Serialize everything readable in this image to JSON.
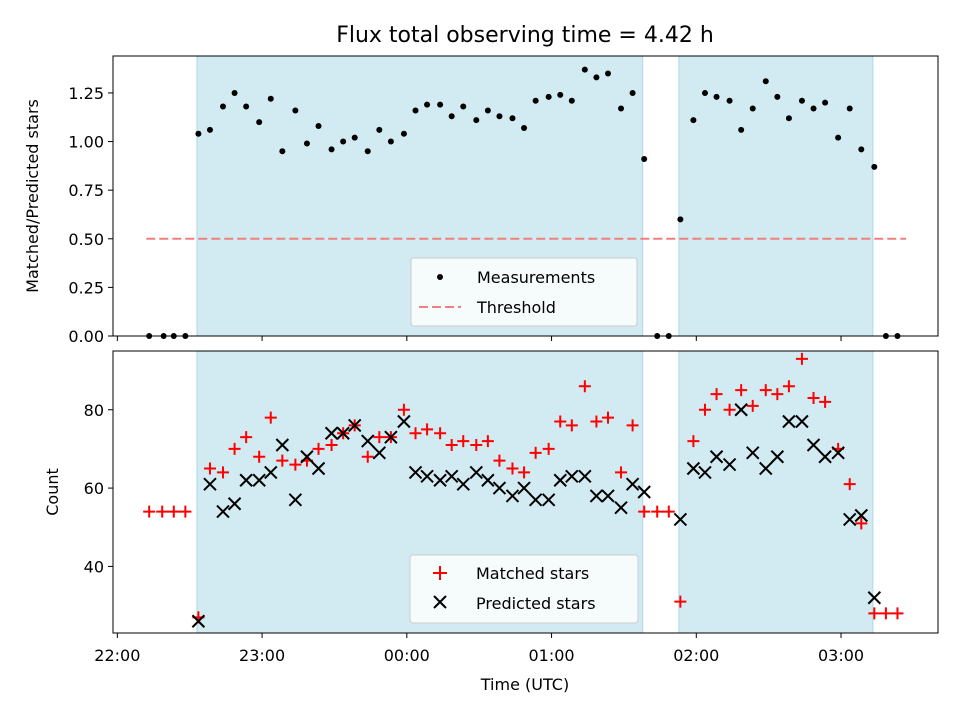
{
  "chart_data": {
    "title": "Flux total observing time = 4.42 h",
    "x_axis": {
      "label": "Time (UTC)",
      "ticks": [
        "22:00",
        "23:00",
        "00:00",
        "01:00",
        "02:00",
        "03:00"
      ],
      "range_hours_after_22": [
        -0.03,
        5.67
      ]
    },
    "shaded_intervals_hours_after_22": [
      [
        0.55,
        3.63
      ],
      [
        3.88,
        5.22
      ]
    ],
    "shade_color": "#add8e6",
    "panels": [
      {
        "type": "scatter",
        "ylabel": "Matched/Predicted stars",
        "ylim": [
          0.0,
          1.44
        ],
        "yticks": [
          "0.00",
          "0.25",
          "0.50",
          "0.75",
          "1.00",
          "1.25"
        ],
        "threshold": {
          "value": 0.5,
          "x_range_hours_after_22": [
            0.2,
            5.45
          ],
          "color": "#f08080"
        },
        "legend": {
          "position": "lower-center",
          "entries": [
            "Measurements",
            "Threshold"
          ]
        },
        "series": [
          {
            "name": "Measurements",
            "marker": "dot",
            "color": "#000000",
            "points": [
              [
                0.22,
                0.0
              ],
              [
                0.32,
                0.0
              ],
              [
                0.39,
                0.0
              ],
              [
                0.47,
                0.0
              ],
              [
                0.56,
                1.04
              ],
              [
                0.64,
                1.06
              ],
              [
                0.73,
                1.18
              ],
              [
                0.81,
                1.25
              ],
              [
                0.89,
                1.18
              ],
              [
                0.98,
                1.1
              ],
              [
                1.06,
                1.22
              ],
              [
                1.14,
                0.95
              ],
              [
                1.23,
                1.16
              ],
              [
                1.31,
                0.99
              ],
              [
                1.39,
                1.08
              ],
              [
                1.48,
                0.96
              ],
              [
                1.56,
                1.0
              ],
              [
                1.64,
                1.02
              ],
              [
                1.73,
                0.95
              ],
              [
                1.81,
                1.06
              ],
              [
                1.89,
                1.0
              ],
              [
                1.98,
                1.04
              ],
              [
                2.06,
                1.16
              ],
              [
                2.14,
                1.19
              ],
              [
                2.23,
                1.19
              ],
              [
                2.31,
                1.13
              ],
              [
                2.39,
                1.18
              ],
              [
                2.48,
                1.11
              ],
              [
                2.56,
                1.16
              ],
              [
                2.64,
                1.13
              ],
              [
                2.73,
                1.12
              ],
              [
                2.81,
                1.07
              ],
              [
                2.89,
                1.21
              ],
              [
                2.98,
                1.23
              ],
              [
                3.06,
                1.24
              ],
              [
                3.14,
                1.21
              ],
              [
                3.23,
                1.37
              ],
              [
                3.31,
                1.33
              ],
              [
                3.39,
                1.35
              ],
              [
                3.48,
                1.17
              ],
              [
                3.56,
                1.25
              ],
              [
                3.64,
                0.91
              ],
              [
                3.73,
                0.0
              ],
              [
                3.81,
                0.0
              ],
              [
                3.89,
                0.6
              ],
              [
                3.98,
                1.11
              ],
              [
                4.06,
                1.25
              ],
              [
                4.14,
                1.23
              ],
              [
                4.23,
                1.21
              ],
              [
                4.31,
                1.06
              ],
              [
                4.39,
                1.17
              ],
              [
                4.48,
                1.31
              ],
              [
                4.56,
                1.23
              ],
              [
                4.64,
                1.12
              ],
              [
                4.73,
                1.21
              ],
              [
                4.81,
                1.17
              ],
              [
                4.89,
                1.2
              ],
              [
                4.98,
                1.02
              ],
              [
                5.06,
                1.17
              ],
              [
                5.14,
                0.96
              ],
              [
                5.23,
                0.87
              ],
              [
                5.31,
                0.0
              ],
              [
                5.39,
                0.0
              ]
            ]
          }
        ]
      },
      {
        "type": "scatter",
        "ylabel": "Count",
        "ylim": [
          23,
          95
        ],
        "yticks": [
          "40",
          "60",
          "80"
        ],
        "legend": {
          "position": "lower-center",
          "entries": [
            "Matched stars",
            "Predicted stars"
          ]
        },
        "series": [
          {
            "name": "Matched stars",
            "marker": "plus",
            "color": "#ff0000",
            "points": [
              [
                0.22,
                54
              ],
              [
                0.31,
                54
              ],
              [
                0.39,
                54
              ],
              [
                0.47,
                54
              ],
              [
                0.56,
                27
              ],
              [
                0.64,
                65
              ],
              [
                0.73,
                64
              ],
              [
                0.81,
                70
              ],
              [
                0.89,
                73
              ],
              [
                0.98,
                68
              ],
              [
                1.06,
                78
              ],
              [
                1.14,
                67
              ],
              [
                1.23,
                66
              ],
              [
                1.31,
                67
              ],
              [
                1.39,
                70
              ],
              [
                1.48,
                71
              ],
              [
                1.56,
                74
              ],
              [
                1.64,
                76
              ],
              [
                1.73,
                68
              ],
              [
                1.81,
                73
              ],
              [
                1.89,
                73
              ],
              [
                1.98,
                80
              ],
              [
                2.06,
                74
              ],
              [
                2.14,
                75
              ],
              [
                2.23,
                74
              ],
              [
                2.31,
                71
              ],
              [
                2.39,
                72
              ],
              [
                2.48,
                71
              ],
              [
                2.56,
                72
              ],
              [
                2.64,
                67
              ],
              [
                2.73,
                65
              ],
              [
                2.81,
                64
              ],
              [
                2.89,
                69
              ],
              [
                2.98,
                70
              ],
              [
                3.06,
                77
              ],
              [
                3.14,
                76
              ],
              [
                3.23,
                86
              ],
              [
                3.31,
                77
              ],
              [
                3.39,
                78
              ],
              [
                3.48,
                64
              ],
              [
                3.56,
                76
              ],
              [
                3.64,
                54
              ],
              [
                3.73,
                54
              ],
              [
                3.81,
                54
              ],
              [
                3.89,
                31
              ],
              [
                3.98,
                72
              ],
              [
                4.06,
                80
              ],
              [
                4.14,
                84
              ],
              [
                4.23,
                80
              ],
              [
                4.31,
                85
              ],
              [
                4.39,
                81
              ],
              [
                4.48,
                85
              ],
              [
                4.56,
                84
              ],
              [
                4.64,
                86
              ],
              [
                4.73,
                93
              ],
              [
                4.81,
                83
              ],
              [
                4.89,
                82
              ],
              [
                4.98,
                70
              ],
              [
                5.06,
                61
              ],
              [
                5.14,
                51
              ],
              [
                5.23,
                28
              ],
              [
                5.31,
                28
              ],
              [
                5.39,
                28
              ]
            ]
          },
          {
            "name": "Predicted stars",
            "marker": "cross",
            "color": "#000000",
            "points": [
              [
                0.56,
                26
              ],
              [
                0.64,
                61
              ],
              [
                0.73,
                54
              ],
              [
                0.81,
                56
              ],
              [
                0.89,
                62
              ],
              [
                0.98,
                62
              ],
              [
                1.06,
                64
              ],
              [
                1.14,
                71
              ],
              [
                1.23,
                57
              ],
              [
                1.31,
                68
              ],
              [
                1.39,
                65
              ],
              [
                1.48,
                74
              ],
              [
                1.56,
                74
              ],
              [
                1.64,
                76
              ],
              [
                1.73,
                72
              ],
              [
                1.81,
                69
              ],
              [
                1.89,
                73
              ],
              [
                1.98,
                77
              ],
              [
                2.06,
                64
              ],
              [
                2.14,
                63
              ],
              [
                2.23,
                62
              ],
              [
                2.31,
                63
              ],
              [
                2.39,
                61
              ],
              [
                2.48,
                64
              ],
              [
                2.56,
                62
              ],
              [
                2.64,
                60
              ],
              [
                2.73,
                58
              ],
              [
                2.81,
                60
              ],
              [
                2.89,
                57
              ],
              [
                2.98,
                57
              ],
              [
                3.06,
                62
              ],
              [
                3.14,
                63
              ],
              [
                3.23,
                63
              ],
              [
                3.31,
                58
              ],
              [
                3.39,
                58
              ],
              [
                3.48,
                55
              ],
              [
                3.56,
                61
              ],
              [
                3.64,
                59
              ],
              [
                3.89,
                52
              ],
              [
                3.98,
                65
              ],
              [
                4.06,
                64
              ],
              [
                4.14,
                68
              ],
              [
                4.23,
                66
              ],
              [
                4.31,
                80
              ],
              [
                4.39,
                69
              ],
              [
                4.48,
                65
              ],
              [
                4.56,
                68
              ],
              [
                4.64,
                77
              ],
              [
                4.73,
                77
              ],
              [
                4.81,
                71
              ],
              [
                4.89,
                68
              ],
              [
                4.98,
                69
              ],
              [
                5.06,
                52
              ],
              [
                5.14,
                53
              ],
              [
                5.23,
                32
              ]
            ]
          }
        ]
      }
    ]
  }
}
